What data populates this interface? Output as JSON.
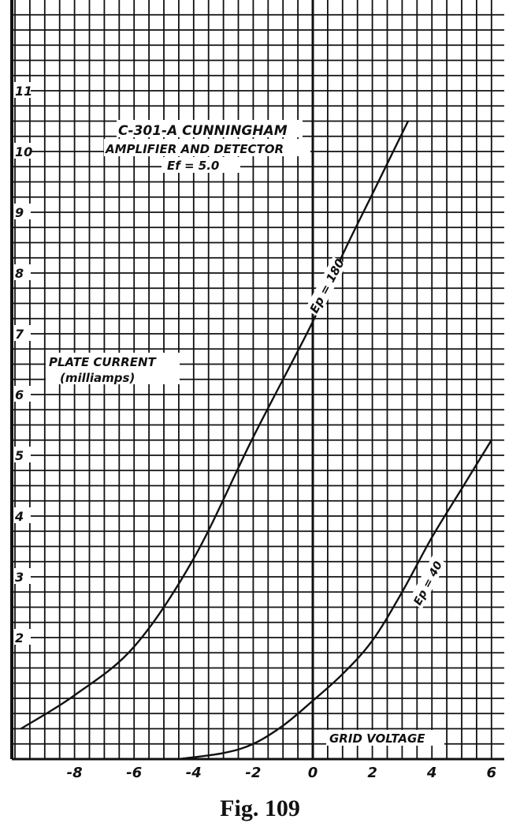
{
  "chart_data": {
    "type": "line",
    "title": [
      "C-301-A CUNNINGHAM",
      "AMPLIFIER AND DETECTOR",
      "Ef = 5.0"
    ],
    "xlabel": "GRID VOLTAGE",
    "ylabel": [
      "PLATE CURRENT",
      "(milliamps)"
    ],
    "xlim": [
      -9.8,
      6
    ],
    "ylim": [
      0,
      12.5
    ],
    "grid": true,
    "grid_minor_step": {
      "x": 0.5,
      "y": 0.25
    },
    "x_ticks": [
      "-8",
      "-6",
      "-4",
      "-2",
      "0",
      "2",
      "4",
      "6"
    ],
    "y_ticks": [
      "2",
      "3",
      "4",
      "5",
      "6",
      "7",
      "8",
      "9",
      "10",
      "11"
    ],
    "series": [
      {
        "name": "Ep = 180",
        "x": [
          -9.8,
          -8,
          -6,
          -4,
          -2,
          0,
          1,
          2,
          3.2
        ],
        "y": [
          0.5,
          1.05,
          1.85,
          3.3,
          5.3,
          7.2,
          8.3,
          9.3,
          10.5
        ]
      },
      {
        "name": "Ep = 40",
        "x": [
          -4.5,
          -3,
          -2,
          -1,
          0,
          1,
          2,
          3,
          4,
          5,
          6
        ],
        "y": [
          0,
          0.1,
          0.25,
          0.55,
          0.96,
          1.4,
          1.95,
          2.75,
          3.65,
          4.45,
          5.25
        ]
      }
    ],
    "colors": {
      "grid": "#111111",
      "line": "#111111",
      "background": "#ffffff"
    }
  },
  "caption": "Fig. 109"
}
